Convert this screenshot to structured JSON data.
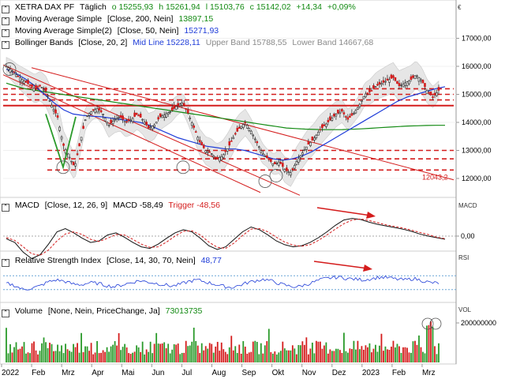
{
  "currency_symbol": "€",
  "header": {
    "instrument": "XETRA DAX PF",
    "period": "Täglich",
    "open": "o 15255,93",
    "high": "h 15261,94",
    "low": "l 15103,76",
    "close": "c 15142,02",
    "change": "+14,34",
    "change_pct": "+0,09%"
  },
  "indicators": {
    "sma200": {
      "label": "Moving Average Simple",
      "params": "[Close, 200, Nein]",
      "value": "13897,15"
    },
    "sma50": {
      "label": "Moving Average Simple(2)",
      "params": "[Close, 50, Nein]",
      "value": "15271,93"
    },
    "bb": {
      "label": "Bollinger Bands",
      "params": "[Close, 20, 2]",
      "mid": "Mid Line 15228,11",
      "upper": "Upper Band 15788,55",
      "lower": "Lower Band 14667,68"
    }
  },
  "macd_panel": {
    "label": "MACD",
    "params": "[Close, 12, 26, 9]",
    "value": "MACD -58,49",
    "trigger": "Trigger -48,56",
    "tag": "MACD",
    "tick": "0,00"
  },
  "rsi_panel": {
    "label": "Relative Strength Index",
    "params": "[Close, 14, 30, 70, Nein]",
    "value": "48,77",
    "tag": "RSI"
  },
  "vol_panel": {
    "label": "Volume",
    "params": "[None, Nein, PriceChange, Ja]",
    "value": "73013735",
    "tag": "VOL",
    "tick": "200000000"
  },
  "trend_label": "12043,2",
  "colors": {
    "up": "#1a1a1a",
    "down": "#d41c1c",
    "sma200": "#138a13",
    "sma50": "#1e3cd8",
    "resistance": "#d41c1c",
    "band": "#e6e6e6"
  },
  "chart_data": [
    {
      "type": "candlestick",
      "title": "XETRA DAX PF",
      "x": [
        "2022",
        "Feb",
        "Mrz",
        "Apr",
        "Mai",
        "Jun",
        "Jul",
        "Aug",
        "Sep",
        "Okt",
        "Nov",
        "Dez",
        "2023",
        "Feb",
        "Mrz"
      ],
      "y_ticks": [
        12000,
        13000,
        14000,
        15000,
        16000,
        17000
      ],
      "y_tick_labels": [
        "12000,00",
        "13000,00",
        "14000,00",
        "15000,00",
        "16000,00",
        "17000,00"
      ],
      "ylim": [
        11500,
        17700
      ],
      "closes": [
        16000,
        15850,
        15650,
        15500,
        15350,
        15200,
        15300,
        15100,
        14600,
        14200,
        13200,
        12800,
        12400,
        13300,
        14200,
        14400,
        14500,
        14300,
        13900,
        14100,
        14200,
        14000,
        14100,
        14300,
        14100,
        13800,
        13900,
        14200,
        14300,
        14400,
        14600,
        14700,
        14300,
        13800,
        13300,
        13000,
        12900,
        12700,
        12800,
        13100,
        13500,
        13800,
        14000,
        13700,
        13300,
        12900,
        12700,
        12500,
        12600,
        12300,
        12200,
        12600,
        12900,
        13200,
        13400,
        13700,
        13900,
        14100,
        14300,
        14400,
        14100,
        14300,
        14600,
        15000,
        15100,
        15300,
        15400,
        15500,
        15600,
        15300,
        15400,
        15500,
        15700,
        15500,
        15100,
        14900,
        15142
      ],
      "sma200": [
        15400,
        15300,
        15200,
        15150,
        15100,
        15050,
        15000,
        14950,
        14900,
        14850,
        14800,
        14750,
        14700,
        14650,
        14600,
        14550,
        14500,
        14450,
        14400,
        14350,
        14300,
        14250,
        14200,
        14150,
        14100,
        14050,
        14000,
        13950,
        13900,
        13850,
        13800,
        13780,
        13760,
        13750,
        13740,
        13740,
        13745,
        13755,
        13770,
        13790,
        13810,
        13830,
        13850,
        13870,
        13880,
        13890,
        13895,
        13897
      ],
      "sma50": [
        15900,
        15750,
        15550,
        15300,
        15000,
        14700,
        14450,
        14300,
        14250,
        14220,
        14200,
        14150,
        14100,
        14050,
        14000,
        13900,
        13750,
        13600,
        13450,
        13350,
        13250,
        13150,
        13100,
        13050,
        13050,
        13000,
        12900,
        12800,
        12700,
        12650,
        12700,
        12800,
        12950,
        13150,
        13350,
        13550,
        13750,
        13950,
        14150,
        14350,
        14550,
        14750,
        14900,
        15000,
        15100,
        15200,
        15272
      ],
      "bb_mid": "15228,11",
      "bb_upper": "15788,55",
      "bb_lower": "14667,68",
      "resistance_levels": [
        15200,
        15000,
        14800,
        14600,
        13000,
        12700,
        12300
      ],
      "trend_line_value": 12043.2
    },
    {
      "type": "line",
      "title": "MACD",
      "series": [
        {
          "name": "MACD",
          "values": [
            -50,
            -120,
            -300,
            -420,
            -350,
            -150,
            80,
            140,
            60,
            -40,
            -120,
            -90,
            20,
            60,
            -20,
            -120,
            -200,
            -230,
            -150,
            -40,
            60,
            120,
            80,
            -40,
            -180,
            -250,
            -200,
            -60,
            80,
            170,
            120,
            20,
            -90,
            -160,
            -200,
            -180,
            -120,
            -30,
            80,
            200,
            300,
            330,
            310,
            260,
            220,
            190,
            160,
            130,
            90,
            40,
            0,
            -30,
            -58.49
          ]
        },
        {
          "name": "Trigger",
          "values": [
            -30,
            -80,
            -200,
            -330,
            -360,
            -260,
            -90,
            40,
            80,
            30,
            -60,
            -100,
            -40,
            30,
            20,
            -60,
            -150,
            -210,
            -200,
            -110,
            0,
            90,
            100,
            20,
            -110,
            -210,
            -230,
            -130,
            10,
            130,
            140,
            80,
            -20,
            -110,
            -170,
            -190,
            -160,
            -80,
            20,
            130,
            230,
            300,
            320,
            290,
            250,
            210,
            180,
            150,
            110,
            70,
            30,
            -20,
            -48.56
          ]
        }
      ],
      "y_ticks": [
        0
      ],
      "ylim": [
        -600,
        600
      ]
    },
    {
      "type": "line",
      "title": "Relative Strength Index",
      "series": [
        {
          "name": "RSI",
          "values": [
            48,
            42,
            30,
            34,
            40,
            52,
            58,
            54,
            46,
            44,
            50,
            48,
            42,
            38,
            44,
            50,
            56,
            52,
            48,
            44,
            40,
            46,
            54,
            58,
            52,
            46,
            40,
            36,
            42,
            50,
            56,
            60,
            54,
            46,
            40,
            38,
            44,
            52,
            60,
            64,
            66,
            62,
            60,
            58,
            62,
            66,
            64,
            60,
            58,
            62,
            56,
            50,
            48.77
          ]
        }
      ],
      "levels": [
        30,
        70
      ],
      "ylim": [
        0,
        100
      ]
    },
    {
      "type": "bar",
      "title": "Volume",
      "y_ticks": [
        200000000
      ],
      "ylim": [
        0,
        260000000
      ],
      "last_value": 73013735
    }
  ]
}
